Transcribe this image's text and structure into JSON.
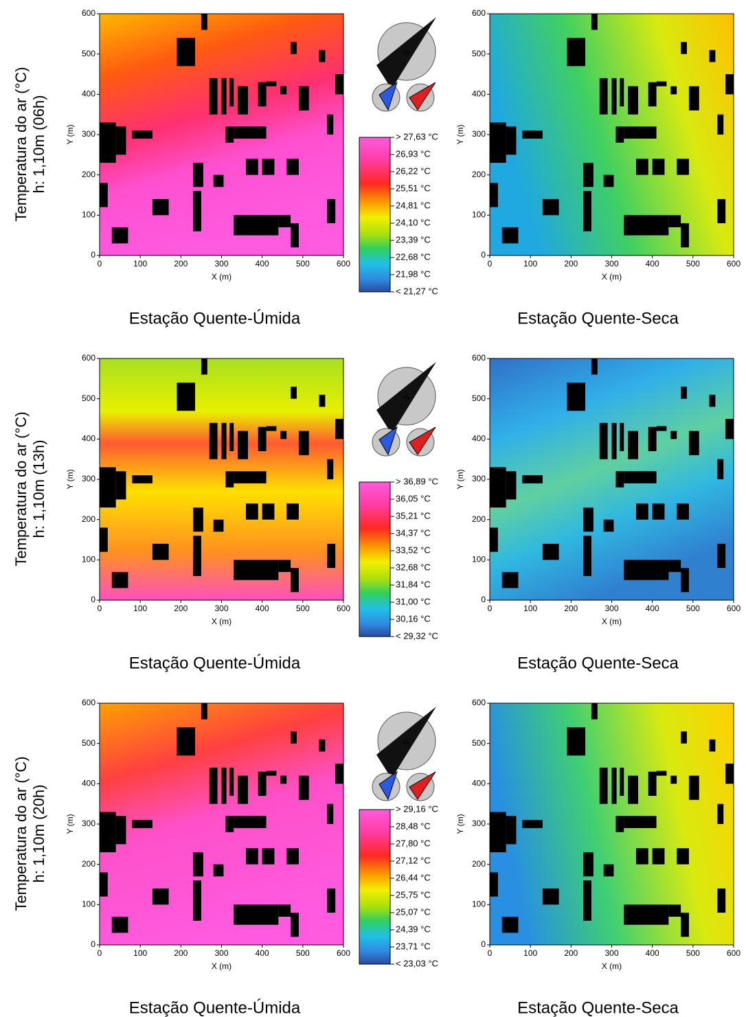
{
  "axes": {
    "x_label": "X (m)",
    "y_label": "Y (m)",
    "xlim": [
      0,
      600
    ],
    "ylim": [
      0,
      600
    ],
    "xticks": [
      0,
      100,
      200,
      300,
      400,
      500,
      600
    ],
    "yticks": [
      0,
      100,
      200,
      300,
      400,
      500,
      600
    ]
  },
  "compass_label": "N",
  "rows": [
    {
      "label_line1": "Temperatura do ar (°C)",
      "label_line2": "h: 1,10m (06h)",
      "legend": [
        "> 27,63 °C",
        "26,93 °C",
        "26,22 °C",
        "25,51 °C",
        "24,81 °C",
        "24,10 °C",
        "23,39 °C",
        "22,68 °C",
        "21,98 °C",
        "< 21,27 °C"
      ],
      "panels": [
        {
          "caption": "Estação Quente-Úmida"
        },
        {
          "caption": "Estação Quente-Seca"
        }
      ]
    },
    {
      "label_line1": "Temperatura do ar (°C)",
      "label_line2": "h: 1,10m (13h)",
      "legend": [
        "> 36,89 °C",
        "36,05 °C",
        "35,21 °C",
        "34,37 °C",
        "33,52 °C",
        "32,68 °C",
        "31,84 °C",
        "31,00 °C",
        "30,16 °C",
        "< 29,32 °C"
      ],
      "panels": [
        {
          "caption": "Estação Quente-Úmida"
        },
        {
          "caption": "Estação Quente-Seca"
        }
      ]
    },
    {
      "label_line1": "Temperatura do ar (°C)",
      "label_line2": "h: 1,10m (20h)",
      "legend": [
        "> 29,16 °C",
        "28,48 °C",
        "27,80 °C",
        "27,12 °C",
        "26,44 °C",
        "25,75 °C",
        "25,07 °C",
        "24,39 °C",
        "23,71 °C",
        "< 23,03 °C"
      ],
      "panels": [
        {
          "caption": "Estação Quente-Úmida"
        },
        {
          "caption": "Estação Quente-Seca"
        }
      ]
    }
  ]
}
